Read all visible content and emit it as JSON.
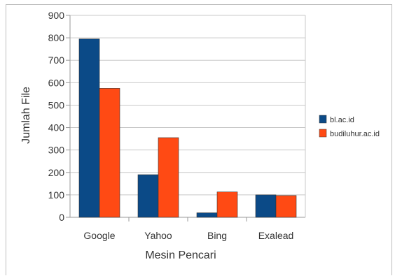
{
  "chart_data": {
    "type": "bar",
    "categories": [
      "Google",
      "Yahoo",
      "Bing",
      "Exalead"
    ],
    "series": [
      {
        "name": "bl.ac.id",
        "color": "#0b4a87",
        "values": [
          795,
          190,
          20,
          100
        ]
      },
      {
        "name": "budiluhur.ac.id",
        "color": "#ff4a14",
        "values": [
          575,
          355,
          113,
          97
        ]
      }
    ],
    "xlabel": "Mesin Pencari",
    "ylabel": "Jumlah File",
    "ylim": [
      0,
      900
    ],
    "yticks": [
      0,
      100,
      200,
      300,
      400,
      500,
      600,
      700,
      800,
      900
    ],
    "grid": true,
    "legend_position": "right"
  }
}
